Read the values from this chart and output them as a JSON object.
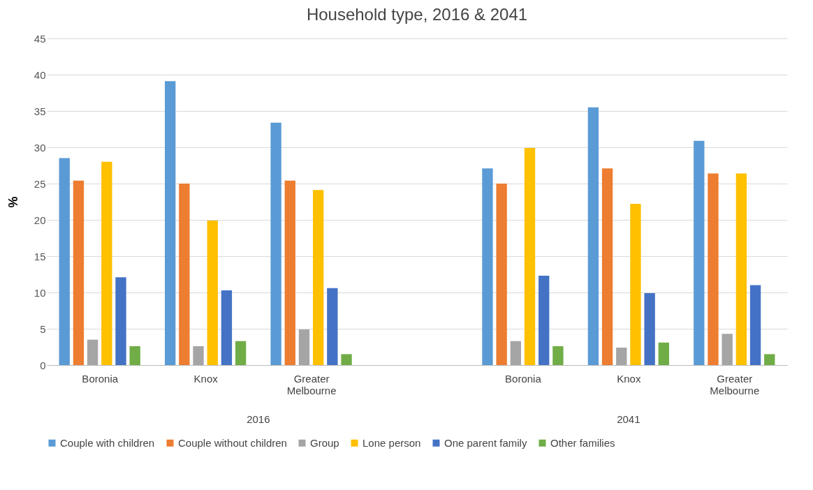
{
  "chart_data": {
    "type": "bar",
    "title": "Household type, 2016 & 2041",
    "ylabel": "%",
    "categories": [
      "Boronia",
      "Knox",
      "Greater Melbourne",
      null,
      "Boronia",
      "Knox",
      "Greater Melbourne"
    ],
    "series": [
      {
        "name": "Couple with children",
        "color": "#5b9bd5",
        "values": [
          28.5,
          39.1,
          33.4,
          null,
          27.1,
          35.5,
          30.9
        ]
      },
      {
        "name": "Couple without children",
        "color": "#ed7d31",
        "values": [
          25.4,
          25.0,
          25.4,
          null,
          25.0,
          27.1,
          26.4
        ]
      },
      {
        "name": "Group",
        "color": "#a5a5a5",
        "values": [
          3.5,
          2.6,
          4.9,
          null,
          3.3,
          2.4,
          4.3
        ]
      },
      {
        "name": "Lone person",
        "color": "#ffc000",
        "values": [
          28.0,
          19.9,
          24.1,
          null,
          29.9,
          22.2,
          26.4
        ]
      },
      {
        "name": "One parent family",
        "color": "#4472c4",
        "values": [
          12.1,
          10.3,
          10.6,
          null,
          12.3,
          9.9,
          11.0
        ]
      },
      {
        "name": "Other families",
        "color": "#70ad47",
        "values": [
          2.6,
          3.3,
          1.5,
          null,
          2.6,
          3.1,
          1.5
        ]
      }
    ],
    "annotations": [
      "2016",
      "2041"
    ],
    "ylim": [
      0,
      45
    ],
    "yticks": [
      0,
      5,
      10,
      15,
      20,
      25,
      30,
      35,
      40,
      45
    ],
    "grid": "y",
    "legend": "bottom"
  }
}
